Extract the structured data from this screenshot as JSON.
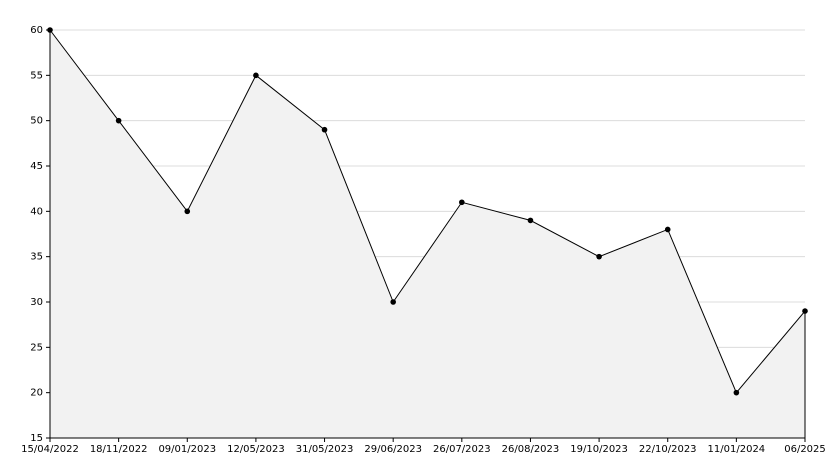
{
  "chart_data": {
    "type": "area",
    "categories": [
      "15/04/2022",
      "18/11/2022",
      "09/01/2023",
      "12/05/2023",
      "31/05/2023",
      "29/06/2023",
      "26/07/2023",
      "26/08/2023",
      "19/10/2023",
      "22/10/2023",
      "11/01/2024",
      "06/2025"
    ],
    "values": [
      60,
      50,
      40,
      55,
      49,
      30,
      41,
      39,
      35,
      38,
      20,
      29
    ],
    "color": "#000000",
    "fill": "#f2f2f2",
    "ylim": [
      15,
      60
    ],
    "yticks": [
      15,
      20,
      25,
      30,
      35,
      40,
      45,
      50,
      55,
      60
    ],
    "grid": true
  }
}
